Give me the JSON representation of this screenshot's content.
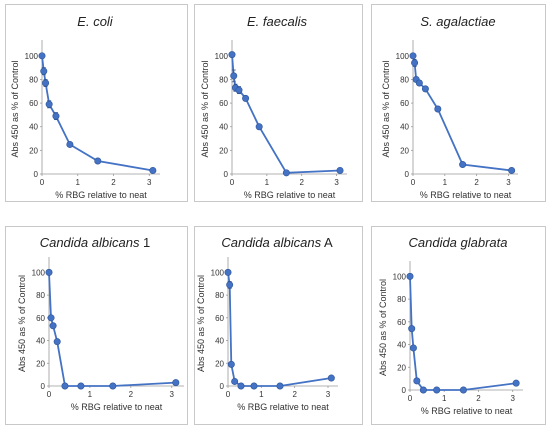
{
  "chart_data": [
    {
      "type": "scatter",
      "title": "E. coli",
      "title_suffix": "",
      "xlabel": "% RBG relative to neat",
      "ylabel": "Abs 450 as % of Control",
      "xlim": [
        0,
        3.3
      ],
      "ylim": [
        0,
        110
      ],
      "xticks": [
        0,
        1,
        2,
        3
      ],
      "yticks": [
        0,
        20,
        40,
        60,
        80,
        100
      ],
      "series": [
        {
          "x": [
            0,
            0.05,
            0.1,
            0.2,
            0.39,
            0.78,
            1.56,
            3.1
          ],
          "y": [
            100,
            87,
            77,
            59,
            49,
            25,
            11,
            3
          ],
          "err": [
            1,
            3,
            3,
            3,
            3,
            1,
            1,
            1
          ]
        }
      ]
    },
    {
      "type": "scatter",
      "title": "E. faecalis",
      "title_suffix": "",
      "xlabel": "% RBG relative to neat",
      "ylabel": "Abs 450 as % of Control",
      "xlim": [
        0,
        3.3
      ],
      "ylim": [
        0,
        110
      ],
      "xticks": [
        0,
        1,
        2,
        3
      ],
      "yticks": [
        0,
        20,
        40,
        60,
        80,
        100
      ],
      "series": [
        {
          "x": [
            0,
            0.05,
            0.1,
            0.2,
            0.39,
            0.78,
            1.56,
            3.1
          ],
          "y": [
            101,
            83,
            73,
            71,
            64,
            40,
            1,
            3
          ],
          "err": [
            2,
            5,
            3,
            3,
            2,
            2,
            1,
            2
          ]
        }
      ]
    },
    {
      "type": "scatter",
      "title": "S. agalactiae",
      "title_suffix": "",
      "xlabel": "% RBG relative to neat",
      "ylabel": "Abs 450 as % of Control",
      "xlim": [
        0,
        3.3
      ],
      "ylim": [
        0,
        110
      ],
      "xticks": [
        0,
        1,
        2,
        3
      ],
      "yticks": [
        0,
        20,
        40,
        60,
        80,
        100
      ],
      "series": [
        {
          "x": [
            0,
            0.05,
            0.1,
            0.2,
            0.39,
            0.78,
            1.56,
            3.1
          ],
          "y": [
            100,
            94,
            80,
            77,
            72,
            55,
            8,
            3
          ],
          "err": [
            1,
            3,
            2,
            2,
            2,
            1,
            1,
            1
          ]
        }
      ]
    },
    {
      "type": "scatter",
      "title": "Candida albicans",
      "title_suffix": "1",
      "xlabel": "% RBG relative to neat",
      "ylabel": "Abs 450 as % of Control",
      "xlim": [
        0,
        3.3
      ],
      "ylim": [
        0,
        110
      ],
      "xticks": [
        0,
        1,
        2,
        3
      ],
      "yticks": [
        0,
        20,
        40,
        60,
        80,
        100
      ],
      "series": [
        {
          "x": [
            0,
            0.05,
            0.1,
            0.2,
            0.39,
            0.78,
            1.56,
            3.1
          ],
          "y": [
            100,
            60,
            53,
            39,
            0,
            0,
            0,
            3
          ],
          "err": [
            1,
            2,
            2,
            1,
            0,
            0,
            0,
            1
          ]
        }
      ]
    },
    {
      "type": "scatter",
      "title": "Candida albicans",
      "title_suffix": "A",
      "xlabel": "% RBG relative to neat",
      "ylabel": "Abs 450 as % of Control",
      "xlim": [
        0,
        3.3
      ],
      "ylim": [
        0,
        110
      ],
      "xticks": [
        0,
        1,
        2,
        3
      ],
      "yticks": [
        0,
        20,
        40,
        60,
        80,
        100
      ],
      "series": [
        {
          "x": [
            0,
            0.05,
            0.1,
            0.2,
            0.39,
            0.78,
            1.56,
            3.1
          ],
          "y": [
            100,
            89,
            19,
            4,
            0,
            0,
            0,
            7
          ],
          "err": [
            1,
            3,
            1,
            1,
            0,
            0,
            0,
            1
          ]
        }
      ]
    },
    {
      "type": "scatter",
      "title": "Candida glabrata",
      "title_suffix": "",
      "xlabel": "% RBG relative to neat",
      "ylabel": "Abs 450 as % of Control",
      "xlim": [
        0,
        3.3
      ],
      "ylim": [
        0,
        110
      ],
      "xticks": [
        0,
        1,
        2,
        3
      ],
      "yticks": [
        0,
        20,
        40,
        60,
        80,
        100
      ],
      "series": [
        {
          "x": [
            0,
            0.05,
            0.1,
            0.2,
            0.39,
            0.78,
            1.56,
            3.1
          ],
          "y": [
            100,
            54,
            37,
            8,
            0,
            0,
            0,
            6
          ],
          "err": [
            1,
            2,
            2,
            1,
            0,
            0,
            0,
            1
          ]
        }
      ]
    }
  ],
  "colors": {
    "series": "#4472c4",
    "marker_edge": "#2f5597",
    "frame": "#c8c8c8",
    "axis": "#9a9a9a"
  }
}
